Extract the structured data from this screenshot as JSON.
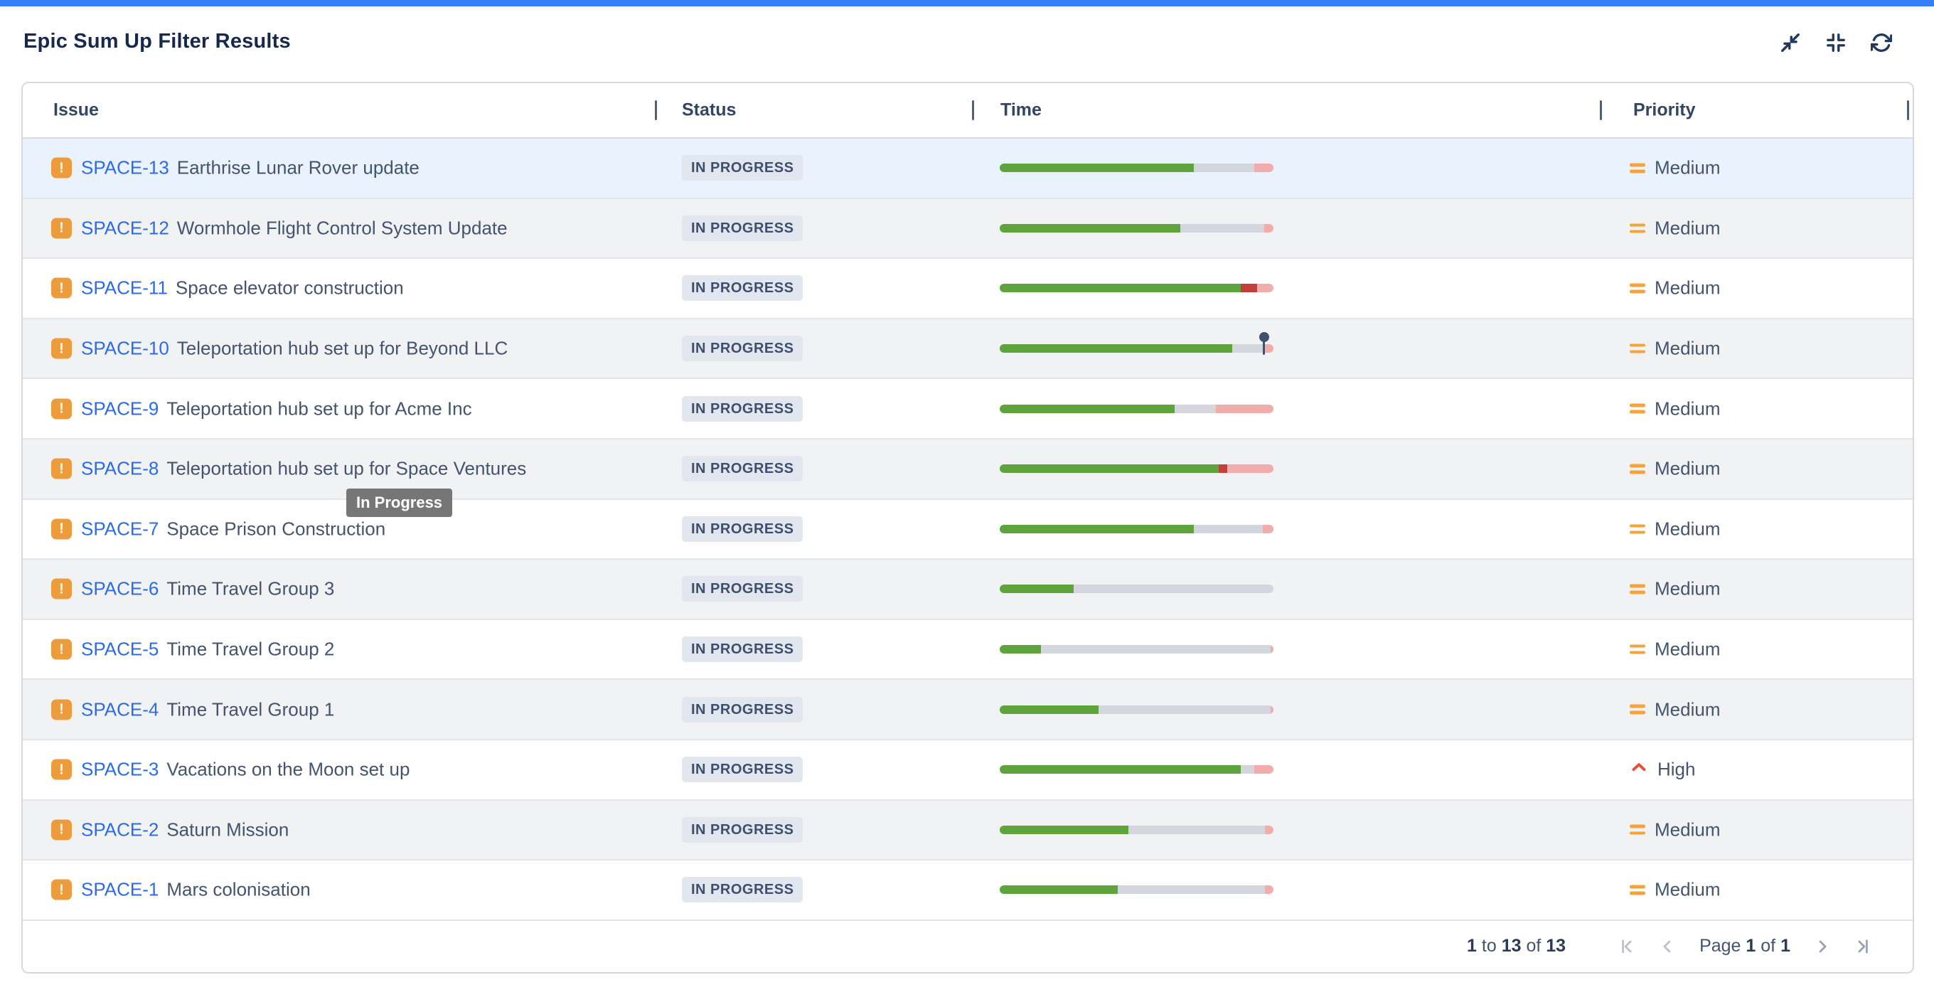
{
  "header": {
    "title": "Epic Sum Up Filter Results",
    "actions": [
      "collapse",
      "compress",
      "refresh"
    ]
  },
  "icons": {
    "epic_glyph": "!"
  },
  "tooltip": {
    "text": "In Progress"
  },
  "table": {
    "columns": [
      "Issue",
      "Status",
      "Time",
      "Priority"
    ],
    "rows": [
      {
        "key": "SPACE-13",
        "summary": "Earthrise Lunar Rover update",
        "status": "IN PROGRESS",
        "priority": "Medium",
        "highlighted": true,
        "bar": {
          "segments": [
            {
              "color": "green",
              "pct": 71
            },
            {
              "color": "gray",
              "pct": 22
            },
            {
              "color": "pink",
              "pct": 7
            }
          ]
        }
      },
      {
        "key": "SPACE-12",
        "summary": "Wormhole Flight Control System Update",
        "status": "IN PROGRESS",
        "priority": "Medium",
        "bar": {
          "segments": [
            {
              "color": "green",
              "pct": 66
            },
            {
              "color": "gray",
              "pct": 30.5
            },
            {
              "color": "pink",
              "pct": 3.5
            }
          ]
        }
      },
      {
        "key": "SPACE-11",
        "summary": "Space elevator construction",
        "status": "IN PROGRESS",
        "priority": "Medium",
        "bar": {
          "segments": [
            {
              "color": "green",
              "pct": 88
            },
            {
              "color": "red",
              "pct": 6
            },
            {
              "color": "pink",
              "pct": 6
            }
          ]
        }
      },
      {
        "key": "SPACE-10",
        "summary": "Teleportation hub set up for Beyond LLC",
        "status": "IN PROGRESS",
        "priority": "Medium",
        "bar": {
          "segments": [
            {
              "color": "green",
              "pct": 85
            },
            {
              "color": "gray",
              "pct": 11
            },
            {
              "color": "pink",
              "pct": 4
            }
          ],
          "pin_pct": 96.5
        }
      },
      {
        "key": "SPACE-9",
        "summary": "Teleportation hub set up for Acme Inc",
        "status": "IN PROGRESS",
        "priority": "Medium",
        "bar": {
          "segments": [
            {
              "color": "green",
              "pct": 64
            },
            {
              "color": "gray",
              "pct": 15
            },
            {
              "color": "pink",
              "pct": 21
            }
          ]
        }
      },
      {
        "key": "SPACE-8",
        "summary": "Teleportation hub set up for Space Ventures",
        "status": "IN PROGRESS",
        "priority": "Medium",
        "bar": {
          "segments": [
            {
              "color": "green",
              "pct": 80
            },
            {
              "color": "red",
              "pct": 3
            },
            {
              "color": "pink",
              "pct": 17
            }
          ]
        }
      },
      {
        "key": "SPACE-7",
        "summary": "Space Prison Construction",
        "status": "IN PROGRESS",
        "priority": "Medium",
        "bar": {
          "segments": [
            {
              "color": "green",
              "pct": 71
            },
            {
              "color": "gray",
              "pct": 25
            },
            {
              "color": "pink",
              "pct": 4
            }
          ]
        }
      },
      {
        "key": "SPACE-6",
        "summary": "Time Travel Group 3",
        "status": "IN PROGRESS",
        "priority": "Medium",
        "bar": {
          "segments": [
            {
              "color": "green",
              "pct": 27
            },
            {
              "color": "gray",
              "pct": 73
            }
          ]
        }
      },
      {
        "key": "SPACE-5",
        "summary": "Time Travel Group 2",
        "status": "IN PROGRESS",
        "priority": "Medium",
        "bar": {
          "segments": [
            {
              "color": "green",
              "pct": 15
            },
            {
              "color": "gray",
              "pct": 84
            },
            {
              "color": "pink",
              "pct": 1
            }
          ]
        }
      },
      {
        "key": "SPACE-4",
        "summary": "Time Travel Group 1",
        "status": "IN PROGRESS",
        "priority": "Medium",
        "bar": {
          "segments": [
            {
              "color": "green",
              "pct": 36
            },
            {
              "color": "gray",
              "pct": 63
            },
            {
              "color": "pink",
              "pct": 1
            }
          ]
        }
      },
      {
        "key": "SPACE-3",
        "summary": "Vacations on the Moon set up",
        "status": "IN PROGRESS",
        "priority": "High",
        "bar": {
          "segments": [
            {
              "color": "green",
              "pct": 88
            },
            {
              "color": "gray",
              "pct": 5
            },
            {
              "color": "pink",
              "pct": 7
            }
          ]
        }
      },
      {
        "key": "SPACE-2",
        "summary": "Saturn Mission",
        "status": "IN PROGRESS",
        "priority": "Medium",
        "bar": {
          "segments": [
            {
              "color": "green",
              "pct": 47
            },
            {
              "color": "gray",
              "pct": 50
            },
            {
              "color": "pink",
              "pct": 3
            }
          ]
        }
      },
      {
        "key": "SPACE-1",
        "summary": "Mars colonisation",
        "status": "IN PROGRESS",
        "priority": "Medium",
        "bar": {
          "segments": [
            {
              "color": "green",
              "pct": 43
            },
            {
              "color": "gray",
              "pct": 54
            },
            {
              "color": "pink",
              "pct": 3
            }
          ]
        }
      }
    ]
  },
  "pagination": {
    "from": "1",
    "to_label": "to",
    "to": "13",
    "of_label": "of",
    "total": "13",
    "page_label": "Page",
    "page_current": "1",
    "page_of_label": "of",
    "page_total": "1"
  },
  "colors": {
    "accent_bar": "#3380F7",
    "title_text": "#16294D",
    "issue_key": "#2B6CE6",
    "row_highlight": "#E9F2FD",
    "row_stripe": "#F1F2F4",
    "badge_bg": "#E2E6EE",
    "bar_done_green": "#5EA33C",
    "bar_remaining_gray": "#D3D7DD",
    "bar_over_pink": "#F3ACAC",
    "bar_over_red": "#C2403C",
    "epic_orange": "#EC9C3D",
    "priority_medium_orange": "#F5A33B",
    "priority_high_red": "#E5503C",
    "pin_navy": "#3E516E"
  }
}
